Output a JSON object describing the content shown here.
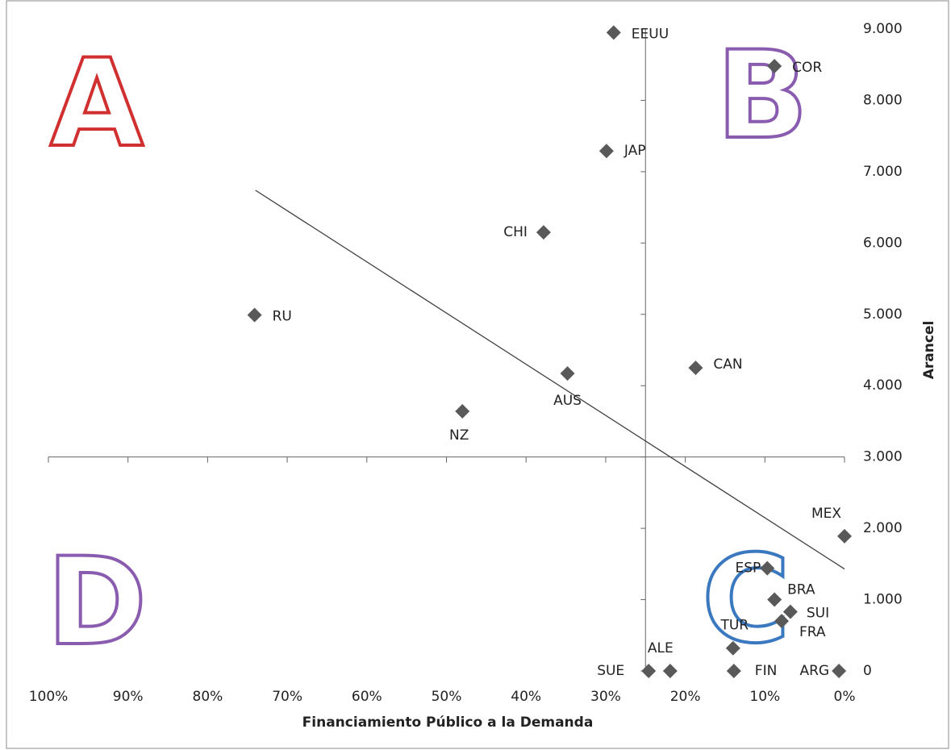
{
  "chart_data": {
    "type": "scatter",
    "x_label": "Financiamiento Público a la Demanda",
    "y_label": "Arancel",
    "labels": [
      "EEUU",
      "COR",
      "JAP",
      "CHI",
      "RU",
      "CAN",
      "AUS",
      "NZ",
      "MEX",
      "ESP",
      "BRA",
      "SUI",
      "FRA",
      "TUR",
      "SUE",
      "ALE",
      "FIN",
      "ARG"
    ],
    "x": [
      29,
      8.8,
      29.9,
      37.8,
      74.1,
      18.7,
      34.8,
      48,
      0,
      9.7,
      8.8,
      6.8,
      7.9,
      14,
      24.6,
      21.9,
      13.9,
      0.7
    ],
    "y": [
      8950,
      8480,
      7290,
      6150,
      4990,
      4250,
      4170,
      3640,
      1890,
      1440,
      1000,
      830,
      700,
      320,
      0,
      0,
      0,
      0
    ],
    "color": "#595959",
    "xlim": [
      100,
      0
    ],
    "ylim": [
      0,
      9000
    ],
    "xticks": [
      {
        "value": 100,
        "label": "100%"
      },
      {
        "value": 90,
        "label": "90%"
      },
      {
        "value": 80,
        "label": "80%"
      },
      {
        "value": 70,
        "label": "70%"
      },
      {
        "value": 60,
        "label": "60%"
      },
      {
        "value": 50,
        "label": "50%"
      },
      {
        "value": 40,
        "label": "40%"
      },
      {
        "value": 30,
        "label": "30%"
      },
      {
        "value": 20,
        "label": "20%"
      },
      {
        "value": 10,
        "label": "10%"
      },
      {
        "value": 0,
        "label": "0%"
      }
    ],
    "yticks": [
      0,
      {
        "value": 1000,
        "label": "1.000"
      },
      {
        "value": 2000,
        "label": "2.000"
      },
      {
        "value": 3000,
        "label": "3.000"
      },
      {
        "value": 4000,
        "label": "4.000"
      },
      {
        "value": 5000,
        "label": "5.000"
      },
      {
        "value": 6000,
        "label": "6.000"
      },
      {
        "value": 7000,
        "label": "7.000"
      },
      {
        "value": 8000,
        "label": "8.000"
      },
      {
        "value": 9000,
        "label": "9.000"
      }
    ],
    "x_axis_crosses": 3000,
    "y_axis_crosses": 25,
    "trendline": {
      "x": [
        74,
        0
      ],
      "y": [
        6740,
        1430
      ],
      "color": "#404040"
    },
    "annotations": [
      {
        "text": "A",
        "color": "#d03030"
      },
      {
        "text": "B",
        "color": "#8a5cb0"
      },
      {
        "text": "C",
        "color": "#3a78c0"
      },
      {
        "text": "D",
        "color": "#8a5cb0"
      }
    ]
  }
}
